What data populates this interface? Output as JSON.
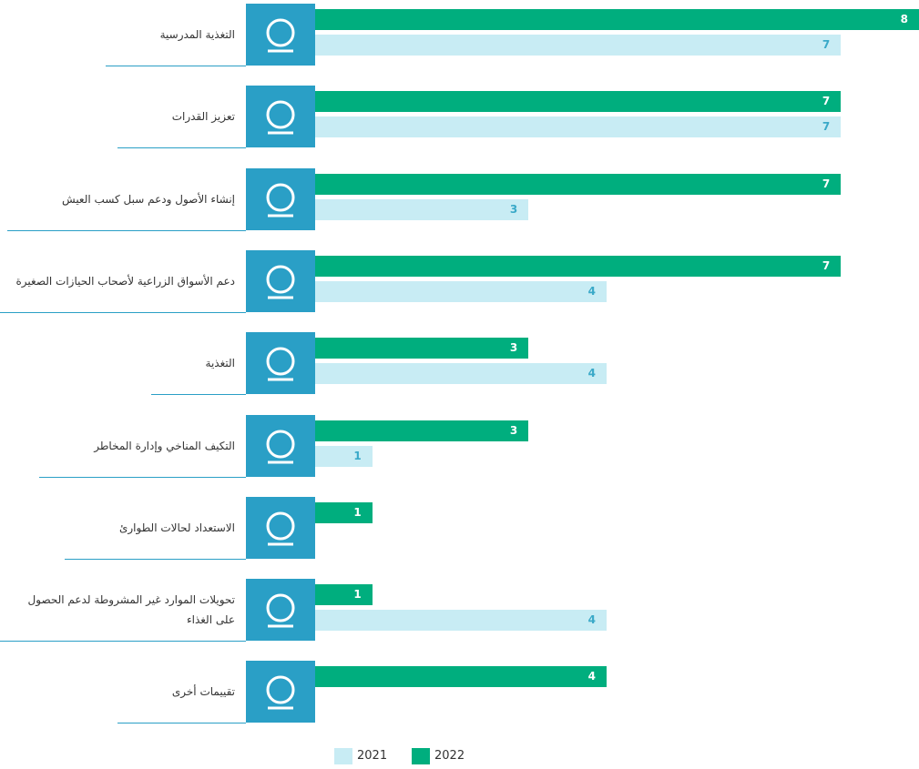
{
  "chart_data": {
    "type": "bar",
    "orientation": "horizontal",
    "categories": [
      "التغذية المدرسية",
      "تعزيز القدرات",
      "إنشاء الأصول ودعم سبل كسب العيش",
      "دعم الأسواق الزراعية لأصحاب الحيازات الصغيرة",
      "التغذية",
      "التكيف المناخي وإدارة المخاطر",
      "الاستعداد لحالات الطوارئ",
      "تحويلات الموارد غير المشروطة لدعم الحصول على الغذاء",
      "تقييمات أخرى"
    ],
    "series": [
      {
        "name": "2021",
        "color": "#c8ecf4",
        "label_color": "#3aa9c8",
        "values": [
          7,
          7,
          3,
          4,
          4,
          1,
          null,
          4,
          null
        ]
      },
      {
        "name": "2022",
        "color": "#00ae7e",
        "label_color": "#ffffff",
        "values": [
          8,
          7,
          7,
          7,
          3,
          3,
          1,
          1,
          4
        ]
      }
    ],
    "xlim": [
      0,
      8
    ],
    "legend": "bottom"
  }
}
